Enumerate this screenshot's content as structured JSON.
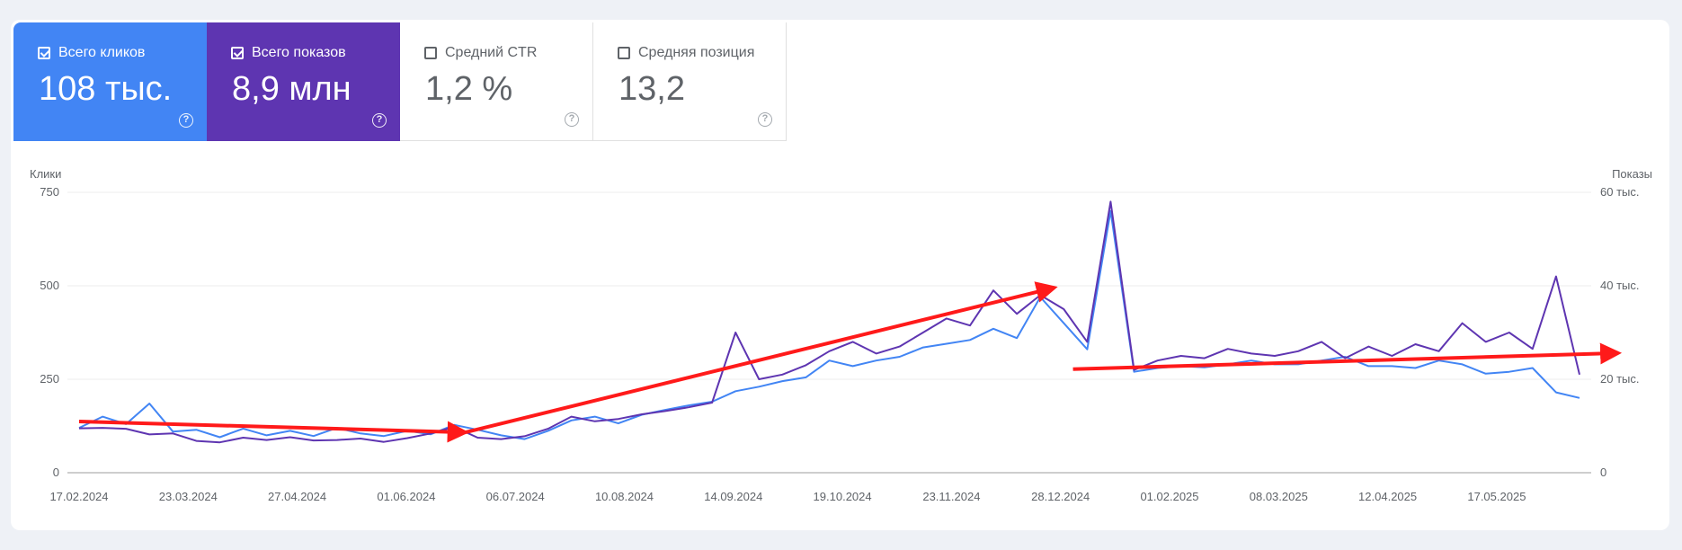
{
  "metrics": [
    {
      "label": "Всего кликов",
      "value": "108 тыс.",
      "checked": true,
      "color": "#4285f4"
    },
    {
      "label": "Всего показов",
      "value": "8,9 млн",
      "checked": true,
      "color": "#5e35b1"
    },
    {
      "label": "Средний CTR",
      "value": "1,2 %",
      "checked": false
    },
    {
      "label": "Средняя позиция",
      "value": "13,2",
      "checked": false
    }
  ],
  "help_glyph": "?",
  "chart_data": {
    "type": "line",
    "ylabel_left": "Клики",
    "ylabel_right": "Показы",
    "y_left_ticks": [
      "0",
      "250",
      "500",
      "750"
    ],
    "y_right_ticks": [
      "0",
      "20 тыс.",
      "40 тыс.",
      "60 тыс."
    ],
    "ylim_left": [
      0,
      750
    ],
    "ylim_right": [
      0,
      60000
    ],
    "x_ticks": [
      "17.02.2024",
      "23.03.2024",
      "27.04.2024",
      "01.06.2024",
      "06.07.2024",
      "10.08.2024",
      "14.09.2024",
      "19.10.2024",
      "23.11.2024",
      "28.12.2024",
      "01.02.2025",
      "08.03.2025",
      "12.04.2025",
      "17.05.2025"
    ],
    "grid": true,
    "series": [
      {
        "name": "Всего кликов",
        "axis": "left",
        "color": "#4285f4",
        "values": [
          120,
          150,
          130,
          185,
          110,
          115,
          95,
          118,
          100,
          112,
          98,
          120,
          105,
          98,
          112,
          103,
          128,
          115,
          100,
          90,
          112,
          140,
          150,
          132,
          155,
          168,
          180,
          190,
          218,
          230,
          245,
          255,
          300,
          285,
          300,
          310,
          335,
          345,
          355,
          385,
          360,
          470,
          400,
          330,
          700,
          270,
          280,
          285,
          282,
          290,
          300,
          290,
          290,
          300,
          310,
          285,
          285,
          280,
          300,
          290,
          265,
          270,
          280,
          215,
          200
        ]
      },
      {
        "name": "Всего показов",
        "axis": "right",
        "color": "#5e35b1",
        "values": [
          9500,
          9600,
          9400,
          8200,
          8400,
          6800,
          6500,
          7500,
          7000,
          7600,
          6900,
          7000,
          7300,
          6600,
          7400,
          8400,
          9800,
          7500,
          7200,
          7800,
          9400,
          12000,
          11000,
          11500,
          12500,
          13200,
          14000,
          15000,
          30000,
          20000,
          21000,
          23000,
          26000,
          28000,
          25500,
          27000,
          30000,
          33000,
          31500,
          39000,
          34000,
          38000,
          35000,
          28000,
          58000,
          22000,
          24000,
          25000,
          24500,
          26500,
          25500,
          25000,
          26000,
          28000,
          24500,
          27000,
          25000,
          27500,
          26000,
          32000,
          28000,
          30000,
          26500,
          42000,
          21000
        ]
      }
    ],
    "annotations": [
      {
        "type": "arrow",
        "color": "#ff1a1a",
        "from": [
          "17.02.2024",
          137
        ],
        "to": [
          "20.06.2024",
          108
        ]
      },
      {
        "type": "arrow",
        "color": "#ff1a1a",
        "from": [
          "20.06.2024",
          108
        ],
        "to": [
          "26.12.2024",
          495
        ]
      },
      {
        "type": "arrow",
        "color": "#ff1a1a",
        "from": [
          "01.01.2025",
          277
        ],
        "to": [
          "25.06.2025",
          320
        ]
      }
    ]
  }
}
